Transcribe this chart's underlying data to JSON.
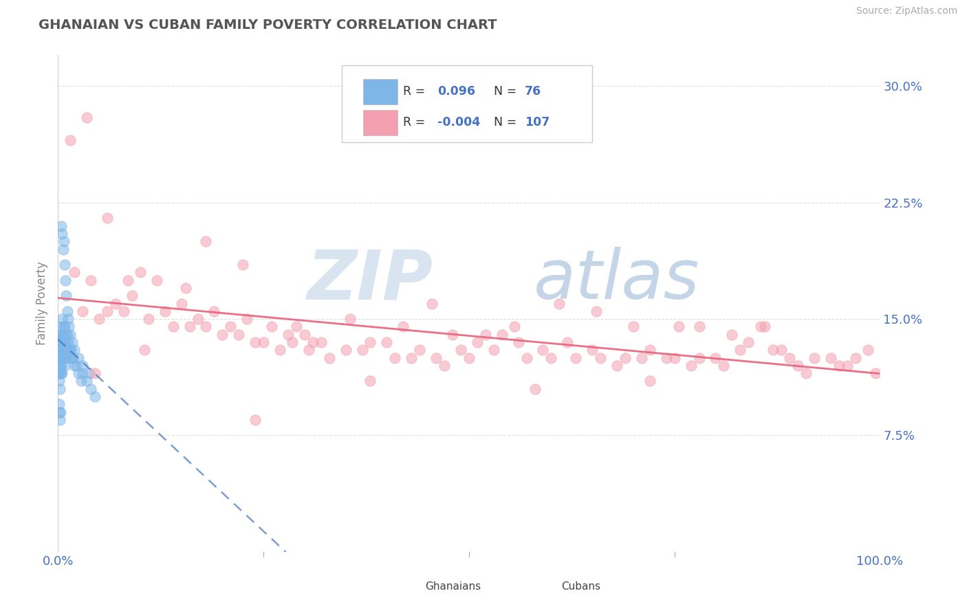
{
  "title": "GHANAIAN VS CUBAN FAMILY POVERTY CORRELATION CHART",
  "source": "Source: ZipAtlas.com",
  "ylabel": "Family Poverty",
  "xlim": [
    0,
    100
  ],
  "ylim": [
    0,
    32
  ],
  "yticks": [
    0,
    7.5,
    15.0,
    22.5,
    30.0
  ],
  "xtick_labels": [
    "0.0%",
    "100.0%"
  ],
  "ytick_labels": [
    "",
    "7.5%",
    "15.0%",
    "22.5%",
    "30.0%"
  ],
  "ghanaian_color": "#7EB6E8",
  "cuban_color": "#F4A0B0",
  "trend_blue_color": "#4472C4",
  "trend_pink_color": "#E8607A",
  "background_color": "#FFFFFF",
  "grid_color": "#DDDDDD",
  "tick_color": "#4472C4",
  "watermark_zip_color": "#D8E4F0",
  "watermark_atlas_color": "#C5D5E8",
  "ghanaian_x": [
    0.1,
    0.1,
    0.1,
    0.15,
    0.15,
    0.15,
    0.2,
    0.2,
    0.2,
    0.2,
    0.25,
    0.25,
    0.25,
    0.3,
    0.3,
    0.3,
    0.35,
    0.35,
    0.4,
    0.4,
    0.4,
    0.45,
    0.5,
    0.5,
    0.5,
    0.55,
    0.6,
    0.6,
    0.65,
    0.7,
    0.7,
    0.75,
    0.8,
    0.8,
    0.85,
    0.9,
    0.95,
    1.0,
    1.0,
    1.1,
    1.1,
    1.2,
    1.3,
    1.4,
    1.5,
    1.6,
    1.7,
    1.8,
    2.0,
    2.2,
    2.5,
    2.8,
    3.0,
    3.5,
    4.0,
    4.5,
    0.1,
    0.15,
    0.2,
    0.3,
    0.4,
    0.5,
    0.6,
    0.7,
    0.8,
    0.9,
    1.0,
    1.1,
    1.2,
    1.3,
    1.5,
    1.7,
    2.0,
    2.5,
    3.0,
    3.8
  ],
  "ghanaian_y": [
    13.5,
    12.8,
    11.5,
    14.0,
    12.5,
    11.0,
    14.5,
    13.0,
    12.0,
    10.5,
    13.8,
    12.5,
    11.5,
    13.5,
    12.8,
    11.8,
    13.0,
    12.0,
    14.0,
    13.0,
    11.5,
    13.5,
    15.0,
    13.0,
    11.5,
    13.5,
    14.0,
    12.5,
    13.0,
    14.5,
    12.5,
    13.5,
    14.5,
    12.0,
    13.0,
    13.5,
    12.5,
    14.0,
    13.0,
    14.0,
    13.0,
    13.5,
    13.0,
    12.5,
    13.0,
    13.0,
    12.5,
    12.5,
    12.0,
    12.0,
    11.5,
    11.0,
    11.5,
    11.0,
    10.5,
    10.0,
    9.5,
    9.0,
    8.5,
    9.0,
    21.0,
    20.5,
    19.5,
    20.0,
    18.5,
    17.5,
    16.5,
    15.5,
    15.0,
    14.5,
    14.0,
    13.5,
    13.0,
    12.5,
    12.0,
    11.5
  ],
  "cuban_x": [
    2.0,
    3.0,
    4.0,
    5.0,
    6.0,
    7.0,
    8.0,
    9.0,
    10.0,
    11.0,
    12.0,
    13.0,
    14.0,
    15.0,
    16.0,
    17.0,
    18.0,
    19.0,
    20.0,
    21.0,
    22.0,
    23.0,
    24.0,
    25.0,
    26.0,
    27.0,
    28.0,
    29.0,
    30.0,
    31.0,
    32.0,
    33.0,
    35.0,
    37.0,
    38.0,
    40.0,
    41.0,
    43.0,
    44.0,
    46.0,
    47.0,
    49.0,
    50.0,
    51.0,
    53.0,
    54.0,
    56.0,
    57.0,
    59.0,
    60.0,
    62.0,
    63.0,
    65.0,
    66.0,
    68.0,
    69.0,
    71.0,
    72.0,
    74.0,
    75.0,
    77.0,
    78.0,
    80.0,
    81.0,
    83.0,
    84.0,
    86.0,
    87.0,
    89.0,
    90.0,
    3.5,
    8.5,
    15.5,
    22.5,
    35.5,
    45.5,
    55.5,
    65.5,
    75.5,
    85.5,
    92.0,
    95.0,
    97.0,
    98.5,
    99.5,
    1.5,
    6.0,
    28.5,
    52.0,
    70.0,
    18.0,
    42.0,
    61.0,
    78.0,
    88.0,
    94.0,
    96.0,
    30.5,
    48.0,
    82.0,
    10.5,
    38.0,
    58.0,
    72.0,
    91.0,
    4.5,
    24.0
  ],
  "cuban_y": [
    18.0,
    15.5,
    17.5,
    15.0,
    15.5,
    16.0,
    15.5,
    16.5,
    18.0,
    15.0,
    17.5,
    15.5,
    14.5,
    16.0,
    14.5,
    15.0,
    14.5,
    15.5,
    14.0,
    14.5,
    14.0,
    15.0,
    13.5,
    13.5,
    14.5,
    13.0,
    14.0,
    14.5,
    14.0,
    13.5,
    13.5,
    12.5,
    13.0,
    13.0,
    13.5,
    13.5,
    12.5,
    12.5,
    13.0,
    12.5,
    12.0,
    13.0,
    12.5,
    13.5,
    13.0,
    14.0,
    13.5,
    12.5,
    13.0,
    12.5,
    13.5,
    12.5,
    13.0,
    12.5,
    12.0,
    12.5,
    12.5,
    13.0,
    12.5,
    12.5,
    12.0,
    12.5,
    12.5,
    12.0,
    13.0,
    13.5,
    14.5,
    13.0,
    12.5,
    12.0,
    28.0,
    17.5,
    17.0,
    18.5,
    15.0,
    16.0,
    14.5,
    15.5,
    14.5,
    14.5,
    12.5,
    12.0,
    12.5,
    13.0,
    11.5,
    26.5,
    21.5,
    13.5,
    14.0,
    14.5,
    20.0,
    14.5,
    16.0,
    14.5,
    13.0,
    12.5,
    12.0,
    13.0,
    14.0,
    14.0,
    13.0,
    11.0,
    10.5,
    11.0,
    11.5,
    11.5,
    8.5
  ]
}
